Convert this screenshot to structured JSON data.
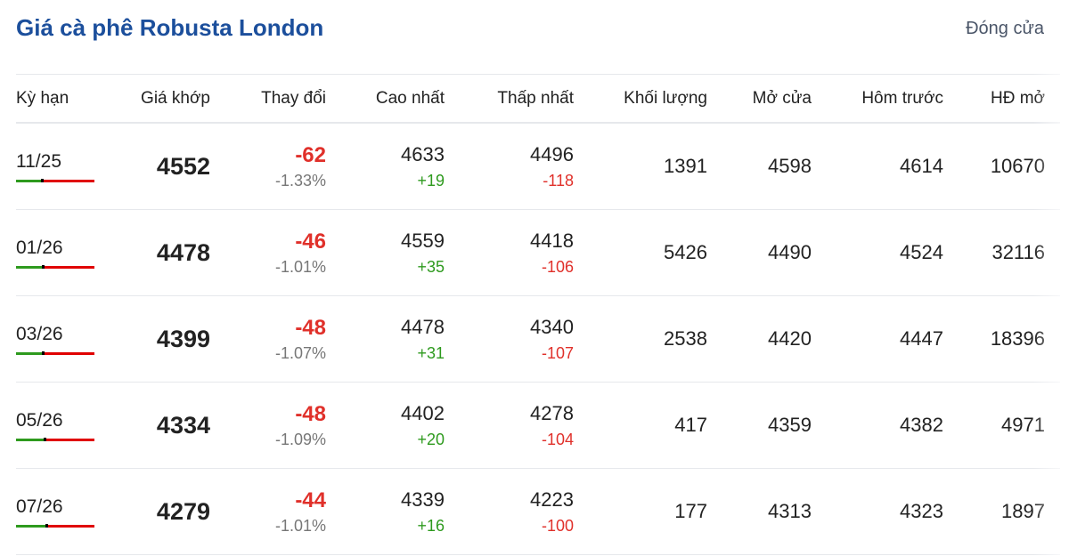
{
  "title": "Giá cà phê Robusta London",
  "status": "Đóng cửa",
  "headers": [
    "Kỳ hạn",
    "Giá khớp",
    "Thay đổi",
    "Cao nhất",
    "Thấp nhất",
    "Khối lượng",
    "Mở cửa",
    "Hôm trước",
    "HĐ mở"
  ],
  "colors": {
    "title": "#1c4f9c",
    "up": "#2e9a1e",
    "down": "#e0302a"
  },
  "rows": [
    {
      "term": "11/25",
      "price": "4552",
      "change": "-62",
      "pct": "-1.33%",
      "high": "4633",
      "high_diff": "+19",
      "low": "4496",
      "low_diff": "-118",
      "volume": "1391",
      "open": "4598",
      "prev": "4614",
      "oi": "10670"
    },
    {
      "term": "01/26",
      "price": "4478",
      "change": "-46",
      "pct": "-1.01%",
      "high": "4559",
      "high_diff": "+35",
      "low": "4418",
      "low_diff": "-106",
      "volume": "5426",
      "open": "4490",
      "prev": "4524",
      "oi": "32116"
    },
    {
      "term": "03/26",
      "price": "4399",
      "change": "-48",
      "pct": "-1.07%",
      "high": "4478",
      "high_diff": "+31",
      "low": "4340",
      "low_diff": "-107",
      "volume": "2538",
      "open": "4420",
      "prev": "4447",
      "oi": "18396"
    },
    {
      "term": "05/26",
      "price": "4334",
      "change": "-48",
      "pct": "-1.09%",
      "high": "4402",
      "high_diff": "+20",
      "low": "4278",
      "low_diff": "-104",
      "volume": "417",
      "open": "4359",
      "prev": "4382",
      "oi": "4971"
    },
    {
      "term": "07/26",
      "price": "4279",
      "change": "-44",
      "pct": "-1.01%",
      "high": "4339",
      "high_diff": "+16",
      "low": "4223",
      "low_diff": "-100",
      "volume": "177",
      "open": "4313",
      "prev": "4323",
      "oi": "1897"
    }
  ]
}
